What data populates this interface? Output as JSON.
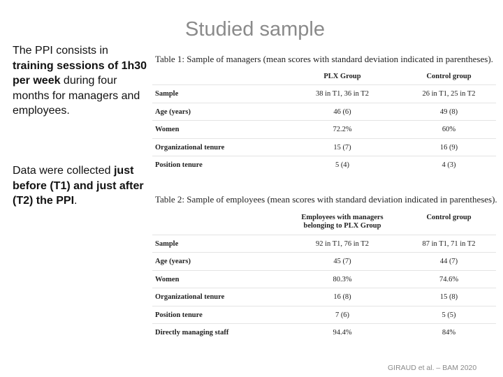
{
  "title": "Studied sample",
  "intro": [
    "The PPI consists in ",
    "training sessions of 1h30 per week",
    " during four months for managers and employees."
  ],
  "data_note": [
    "Data were collected ",
    "just before (T1) and just after (T2) the PPI",
    "."
  ],
  "table1": {
    "caption": "Table 1: Sample of managers (mean scores with standard deviation indicated in parentheses).",
    "header": [
      "PLX Group",
      "Control group"
    ],
    "rows": [
      [
        "Sample",
        "38 in T1, 36 in T2",
        "26 in T1, 25 in T2"
      ],
      [
        "Age (years)",
        "46 (6)",
        "49 (8)"
      ],
      [
        "Women",
        "72.2%",
        "60%"
      ],
      [
        "Organizational tenure",
        "15 (7)",
        "16 (9)"
      ],
      [
        "Position tenure",
        "5 (4)",
        "4 (3)"
      ]
    ]
  },
  "table2": {
    "caption": "Table 2: Sample of employees (mean scores with standard deviation indicated in parentheses).",
    "header": [
      "Employees with managers belonging to PLX Group",
      "Control group"
    ],
    "rows": [
      [
        "Sample",
        "92 in T1, 76 in T2",
        "87 in T1, 71 in T2"
      ],
      [
        "Age (years)",
        "45 (7)",
        "44 (7)"
      ],
      [
        "Women",
        "80.3%",
        "74.6%"
      ],
      [
        "Organizational tenure",
        "16 (8)",
        "15 (8)"
      ],
      [
        "Position tenure",
        "7 (6)",
        "5 (5)"
      ],
      [
        "Directly managing staff",
        "94.4%",
        "84%"
      ]
    ]
  },
  "footer": "GIRAUD et al. – BAM 2020"
}
